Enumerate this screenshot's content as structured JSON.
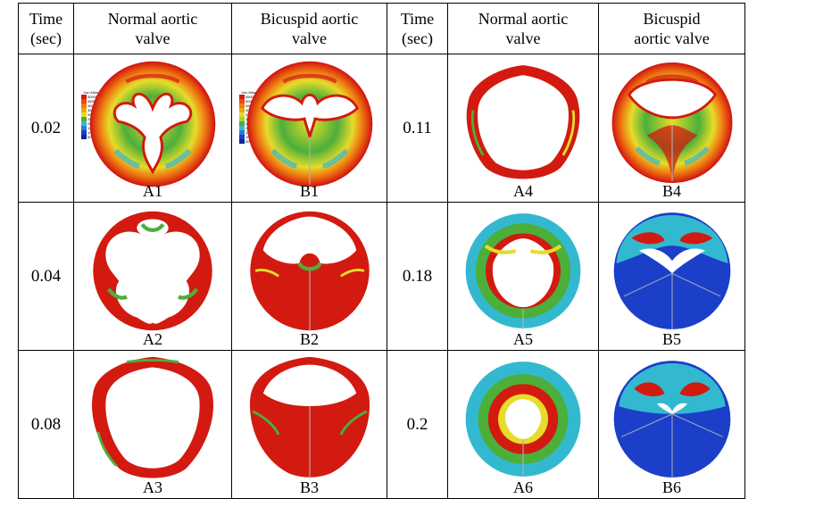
{
  "headers": {
    "time": "Time\n(sec)",
    "normal": "Normal aortic\nvalve",
    "bicuspid": "Bicuspid aortic\nvalve",
    "time2": "Time\n(sec)",
    "normal2": "Normal aortic\nvalve",
    "bicuspid2": "Bicuspid\naortic valve"
  },
  "legend": {
    "title": "Von Mises Stress",
    "values": [
      "50000",
      "45000",
      "40000",
      "35000",
      "30000",
      "25000",
      "20000",
      "15000",
      "10000",
      "5000"
    ]
  },
  "legend_b": {
    "title": "Von Mises Stress",
    "values": [
      "55000",
      "50000",
      "45000",
      "40000",
      "35000",
      "30000",
      "25000",
      "20000",
      "15000",
      "10000",
      "5000"
    ]
  },
  "colors": {
    "red": "#d21a10",
    "orange": "#ef7a12",
    "yellow": "#e6dc2a",
    "green": "#4caf3a",
    "cyan": "#33b9cf",
    "blue": "#1b3fc8",
    "darkblue": "#12249a"
  },
  "rows": [
    {
      "left": {
        "time": "0.02",
        "a": "A1",
        "b": "B1"
      },
      "right": {
        "time": "0.11",
        "a": "A4",
        "b": "B4"
      }
    },
    {
      "left": {
        "time": "0.04",
        "a": "A2",
        "b": "B2"
      },
      "right": {
        "time": "0.18",
        "a": "A5",
        "b": "B5"
      }
    },
    {
      "left": {
        "time": "0.08",
        "a": "A3",
        "b": "B3"
      },
      "right": {
        "time": "0.2",
        "a": "A6",
        "b": "B6"
      }
    }
  ]
}
